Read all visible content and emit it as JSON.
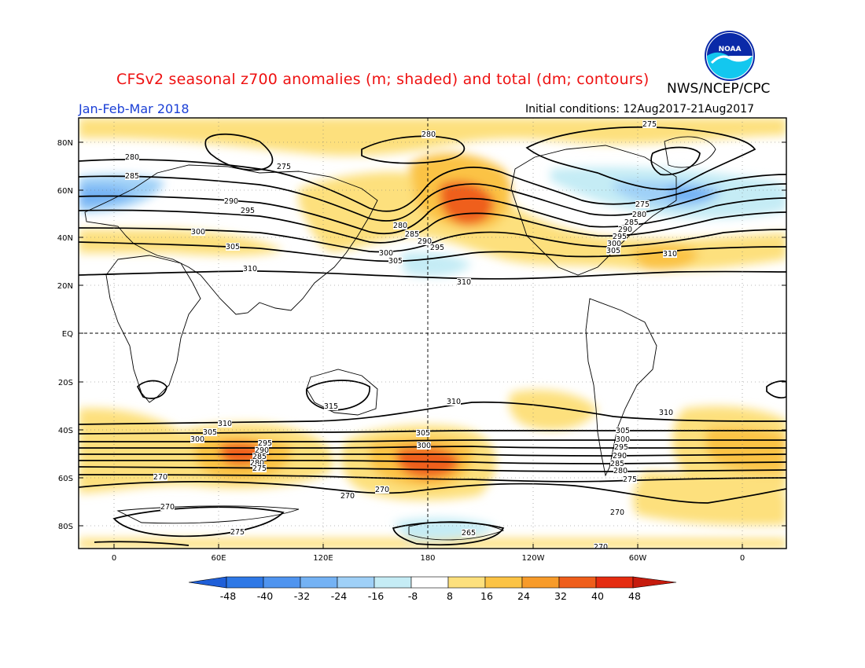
{
  "header": {
    "title": "CFSv2 seasonal z700 anomalies (m; shaded) and total (dm; contours)",
    "agency": "NWS/NCEP/CPC",
    "season": "Jan-Feb-Mar 2018",
    "initial_conditions": "Initial conditions: 12Aug2017-21Aug2017",
    "logo_text": "NOAA"
  },
  "axes": {
    "lat_ticks": [
      "80N",
      "60N",
      "40N",
      "20N",
      "EQ",
      "20S",
      "40S",
      "60S",
      "80S"
    ],
    "lon_ticks": [
      "0",
      "60E",
      "120E",
      "180",
      "120W",
      "60W",
      "0"
    ]
  },
  "colorbar": {
    "labels": [
      "-48",
      "-40",
      "-32",
      "-24",
      "-16",
      "-8",
      "8",
      "16",
      "24",
      "32",
      "40",
      "48"
    ],
    "colors": [
      "#1f5fd8",
      "#2e78e6",
      "#4f94ef",
      "#74b2f4",
      "#9fd0f7",
      "#c5ecf5",
      "#ffffff",
      "#fde07d",
      "#fbc345",
      "#f79b2a",
      "#ef5e1b",
      "#e52c10",
      "#c61b0d"
    ]
  },
  "contour_labels": [
    {
      "text": "275"
    },
    {
      "text": "280"
    },
    {
      "text": "275"
    },
    {
      "text": "280"
    },
    {
      "text": "285"
    },
    {
      "text": "290"
    },
    {
      "text": "295"
    },
    {
      "text": "300"
    },
    {
      "text": "305"
    },
    {
      "text": "310"
    },
    {
      "text": "280"
    },
    {
      "text": "285"
    },
    {
      "text": "290"
    },
    {
      "text": "295"
    },
    {
      "text": "300"
    },
    {
      "text": "305"
    },
    {
      "text": "310"
    },
    {
      "text": "275"
    },
    {
      "text": "280"
    },
    {
      "text": "285"
    },
    {
      "text": "290"
    },
    {
      "text": "295"
    },
    {
      "text": "300"
    },
    {
      "text": "305"
    },
    {
      "text": "310"
    },
    {
      "text": "315"
    },
    {
      "text": "310"
    },
    {
      "text": "310"
    },
    {
      "text": "310"
    },
    {
      "text": "305"
    },
    {
      "text": "300"
    },
    {
      "text": "295"
    },
    {
      "text": "290"
    },
    {
      "text": "285"
    },
    {
      "text": "280"
    },
    {
      "text": "275"
    },
    {
      "text": "305"
    },
    {
      "text": "300"
    },
    {
      "text": "305"
    },
    {
      "text": "300"
    },
    {
      "text": "295"
    },
    {
      "text": "290"
    },
    {
      "text": "285"
    },
    {
      "text": "280"
    },
    {
      "text": "275"
    },
    {
      "text": "270"
    },
    {
      "text": "270"
    },
    {
      "text": "270"
    },
    {
      "text": "270"
    },
    {
      "text": "270"
    },
    {
      "text": "275"
    },
    {
      "text": "265"
    },
    {
      "text": "270"
    }
  ]
}
